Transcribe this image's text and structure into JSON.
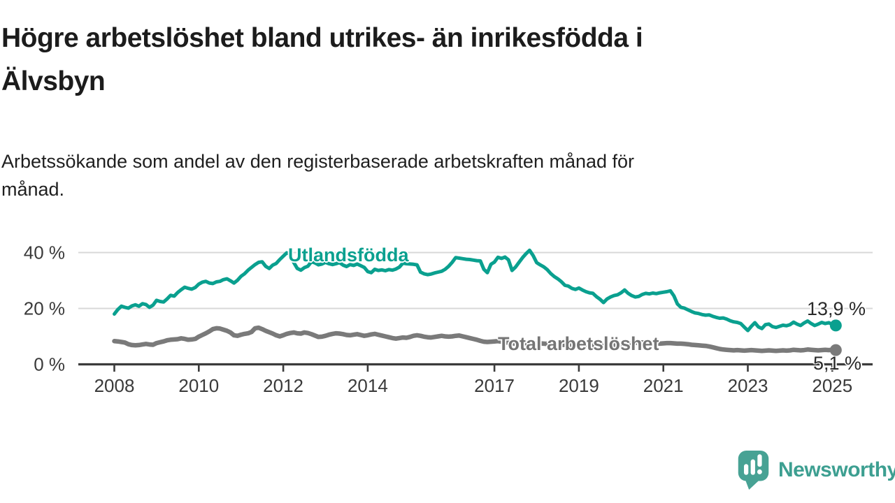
{
  "page": {
    "background": "#ffffff"
  },
  "header": {
    "title": "Högre arbetslöshet bland utrikes- än inrikesfödda i Älvsbyn",
    "title_lines": [
      "Högre arbetslöshet bland utrikes- än inrikesfödda i",
      "Älvsbyn"
    ],
    "subtitle": "Arbetssökande som andel av den registerbaserade arbetskraften månad för månad.",
    "subtitle_lines": [
      "Arbetssökande som andel av den registerbaserade arbetskraften månad för",
      "månad."
    ]
  },
  "footer": {
    "brand_name": "Newsworthy",
    "logo_icon": "bar-chart-speech-bubble-icon"
  },
  "colors": {
    "foreign_born": "#0aa08f",
    "total": "#7a7a7a",
    "axis": "#3c3c3c",
    "grid": "#d8d8d8",
    "tick_text": "#3a3a3a",
    "title_text": "#1c1c1c",
    "brand_teal": "#47a294"
  },
  "chart_data": {
    "type": "line",
    "title": "Högre arbetslöshet bland utrikes- än inrikesfödda i Älvsbyn",
    "subtitle": "Arbetssökande som andel av den registerbaserade arbetskraften månad för månad.",
    "unit": "%",
    "grid": "horizontal",
    "legend_position": "inline-labels",
    "x_axis": {
      "label": "",
      "range": [
        2007.15,
        2025.95
      ],
      "ticks": [
        2008,
        2010,
        2012,
        2014,
        2017,
        2019,
        2021,
        2023,
        2025
      ],
      "tick_labels": [
        "2008",
        "2010",
        "2012",
        "2014",
        "2017",
        "2019",
        "2021",
        "2023",
        "2025"
      ]
    },
    "y_axis": {
      "label": "",
      "range": [
        0,
        44
      ],
      "ticks": [
        0,
        20,
        40
      ],
      "tick_labels": [
        "0 %",
        "20 %",
        "40 %"
      ],
      "gridlines": [
        20,
        40
      ]
    },
    "series": [
      {
        "id": "utlandsfodda",
        "name": "Utlandsfödda",
        "color": "#0aa08f",
        "width": 5,
        "start_year": 2008,
        "step_months": 1,
        "end_value": 13.9,
        "end_label": "13,9 %",
        "values": [
          18.0,
          19.6,
          20.8,
          20.4,
          20.1,
          20.9,
          21.3,
          20.8,
          21.7,
          21.4,
          20.4,
          21.2,
          22.9,
          22.5,
          22.3,
          23.4,
          24.7,
          24.4,
          25.7,
          26.7,
          27.6,
          27.2,
          26.9,
          27.5,
          28.7,
          29.4,
          29.7,
          29.1,
          28.9,
          29.5,
          29.7,
          30.3,
          30.6,
          29.9,
          29.1,
          30.1,
          31.5,
          32.4,
          33.7,
          34.7,
          35.7,
          36.5,
          36.7,
          35.1,
          34.3,
          35.5,
          36.1,
          37.5,
          38.7,
          39.9,
          39.4,
          36.4,
          34.3,
          33.7,
          34.6,
          35.1,
          36.7,
          36.3,
          35.6,
          35.9,
          36.5,
          36.0,
          35.7,
          36.0,
          36.4,
          35.5,
          35.0,
          35.7,
          35.4,
          35.9,
          35.3,
          34.7,
          33.2,
          32.8,
          34.0,
          33.6,
          33.8,
          33.5,
          33.9,
          33.7,
          34.1,
          34.8,
          36.2,
          36.0,
          35.9,
          35.8,
          35.6,
          33.0,
          32.4,
          32.1,
          32.3,
          32.7,
          33.0,
          33.3,
          34.0,
          35.1,
          36.5,
          38.2,
          38.0,
          37.8,
          37.6,
          37.5,
          37.3,
          37.1,
          37.0,
          34.0,
          32.8,
          35.8,
          36.6,
          38.3,
          37.9,
          38.4,
          37.4,
          33.6,
          34.8,
          36.5,
          38.2,
          39.6,
          40.8,
          38.9,
          36.4,
          35.6,
          34.9,
          33.9,
          32.5,
          31.4,
          30.6,
          29.6,
          28.3,
          28.0,
          27.2,
          26.8,
          27.3,
          26.6,
          26.0,
          25.6,
          25.4,
          24.2,
          23.3,
          22.1,
          23.4,
          24.1,
          24.6,
          24.9,
          25.6,
          26.6,
          25.4,
          24.6,
          24.1,
          24.3,
          25.0,
          25.4,
          25.2,
          25.5,
          25.3,
          25.6,
          25.8,
          26.0,
          26.3,
          24.5,
          21.6,
          20.4,
          20.1,
          19.5,
          18.9,
          18.4,
          18.2,
          17.8,
          17.6,
          17.7,
          17.2,
          16.8,
          16.5,
          16.6,
          16.2,
          15.6,
          15.2,
          15.0,
          14.6,
          13.3,
          12.1,
          13.6,
          14.9,
          13.4,
          12.8,
          14.2,
          14.4,
          13.5,
          13.2,
          13.6,
          14.0,
          13.8,
          14.2,
          15.1,
          14.4,
          13.9,
          14.8,
          15.5,
          14.6,
          13.9,
          14.4,
          15.0,
          14.6,
          14.9,
          14.3,
          13.9
        ]
      },
      {
        "id": "total-arbetsloshet",
        "name": "Total arbetslöshet",
        "color": "#7a7a7a",
        "width": 6.5,
        "start_year": 2008,
        "step_months": 1,
        "end_value": 5.1,
        "end_label": "5,1 %",
        "values": [
          8.3,
          8.2,
          8.0,
          7.8,
          7.2,
          6.9,
          6.8,
          6.9,
          7.1,
          7.3,
          7.1,
          7.0,
          7.6,
          7.9,
          8.2,
          8.6,
          8.8,
          8.9,
          9.0,
          9.3,
          9.1,
          8.8,
          8.9,
          9.1,
          9.9,
          10.5,
          11.1,
          11.8,
          12.6,
          12.9,
          12.8,
          12.4,
          12.0,
          11.4,
          10.4,
          10.2,
          10.6,
          10.9,
          11.1,
          11.6,
          12.9,
          13.1,
          12.6,
          12.0,
          11.5,
          11.0,
          10.4,
          10.0,
          10.4,
          10.9,
          11.2,
          11.4,
          11.1,
          11.0,
          11.4,
          11.2,
          10.8,
          10.3,
          9.8,
          9.9,
          10.2,
          10.6,
          10.9,
          11.1,
          11.0,
          10.8,
          10.5,
          10.4,
          10.6,
          10.8,
          10.5,
          10.2,
          10.4,
          10.7,
          10.9,
          10.6,
          10.3,
          10.0,
          9.7,
          9.4,
          9.2,
          9.4,
          9.6,
          9.5,
          9.8,
          10.2,
          10.4,
          10.2,
          9.9,
          9.7,
          9.6,
          9.8,
          10.0,
          10.2,
          10.0,
          9.9,
          10.0,
          10.2,
          10.3,
          10.0,
          9.7,
          9.4,
          9.1,
          8.8,
          8.4,
          8.1,
          8.0,
          8.1,
          8.2,
          8.3,
          8.1,
          7.9,
          7.7,
          7.5,
          7.4,
          7.3,
          7.4,
          7.5,
          7.4,
          7.3,
          7.4,
          7.5,
          7.4,
          7.3,
          7.2,
          7.1,
          7.0,
          6.9,
          7.0,
          7.1,
          7.0,
          6.9,
          7.0,
          7.1,
          7.2,
          7.0,
          6.9,
          6.8,
          6.7,
          6.6,
          6.7,
          6.8,
          6.9,
          7.0,
          7.1,
          7.3,
          7.4,
          7.6,
          7.7,
          7.8,
          7.8,
          7.7,
          7.6,
          7.5,
          7.5,
          7.4,
          7.5,
          7.6,
          7.6,
          7.5,
          7.4,
          7.4,
          7.3,
          7.2,
          7.0,
          6.9,
          6.8,
          6.7,
          6.6,
          6.4,
          6.1,
          5.8,
          5.5,
          5.3,
          5.2,
          5.1,
          5.0,
          5.1,
          5.0,
          4.9,
          5.0,
          5.1,
          5.0,
          4.9,
          4.8,
          4.9,
          5.0,
          4.9,
          4.8,
          4.9,
          5.0,
          4.9,
          5.0,
          5.2,
          5.1,
          5.0,
          5.1,
          5.3,
          5.2,
          5.1,
          5.0,
          5.1,
          5.2,
          5.1,
          5.2,
          5.1
        ]
      }
    ]
  }
}
